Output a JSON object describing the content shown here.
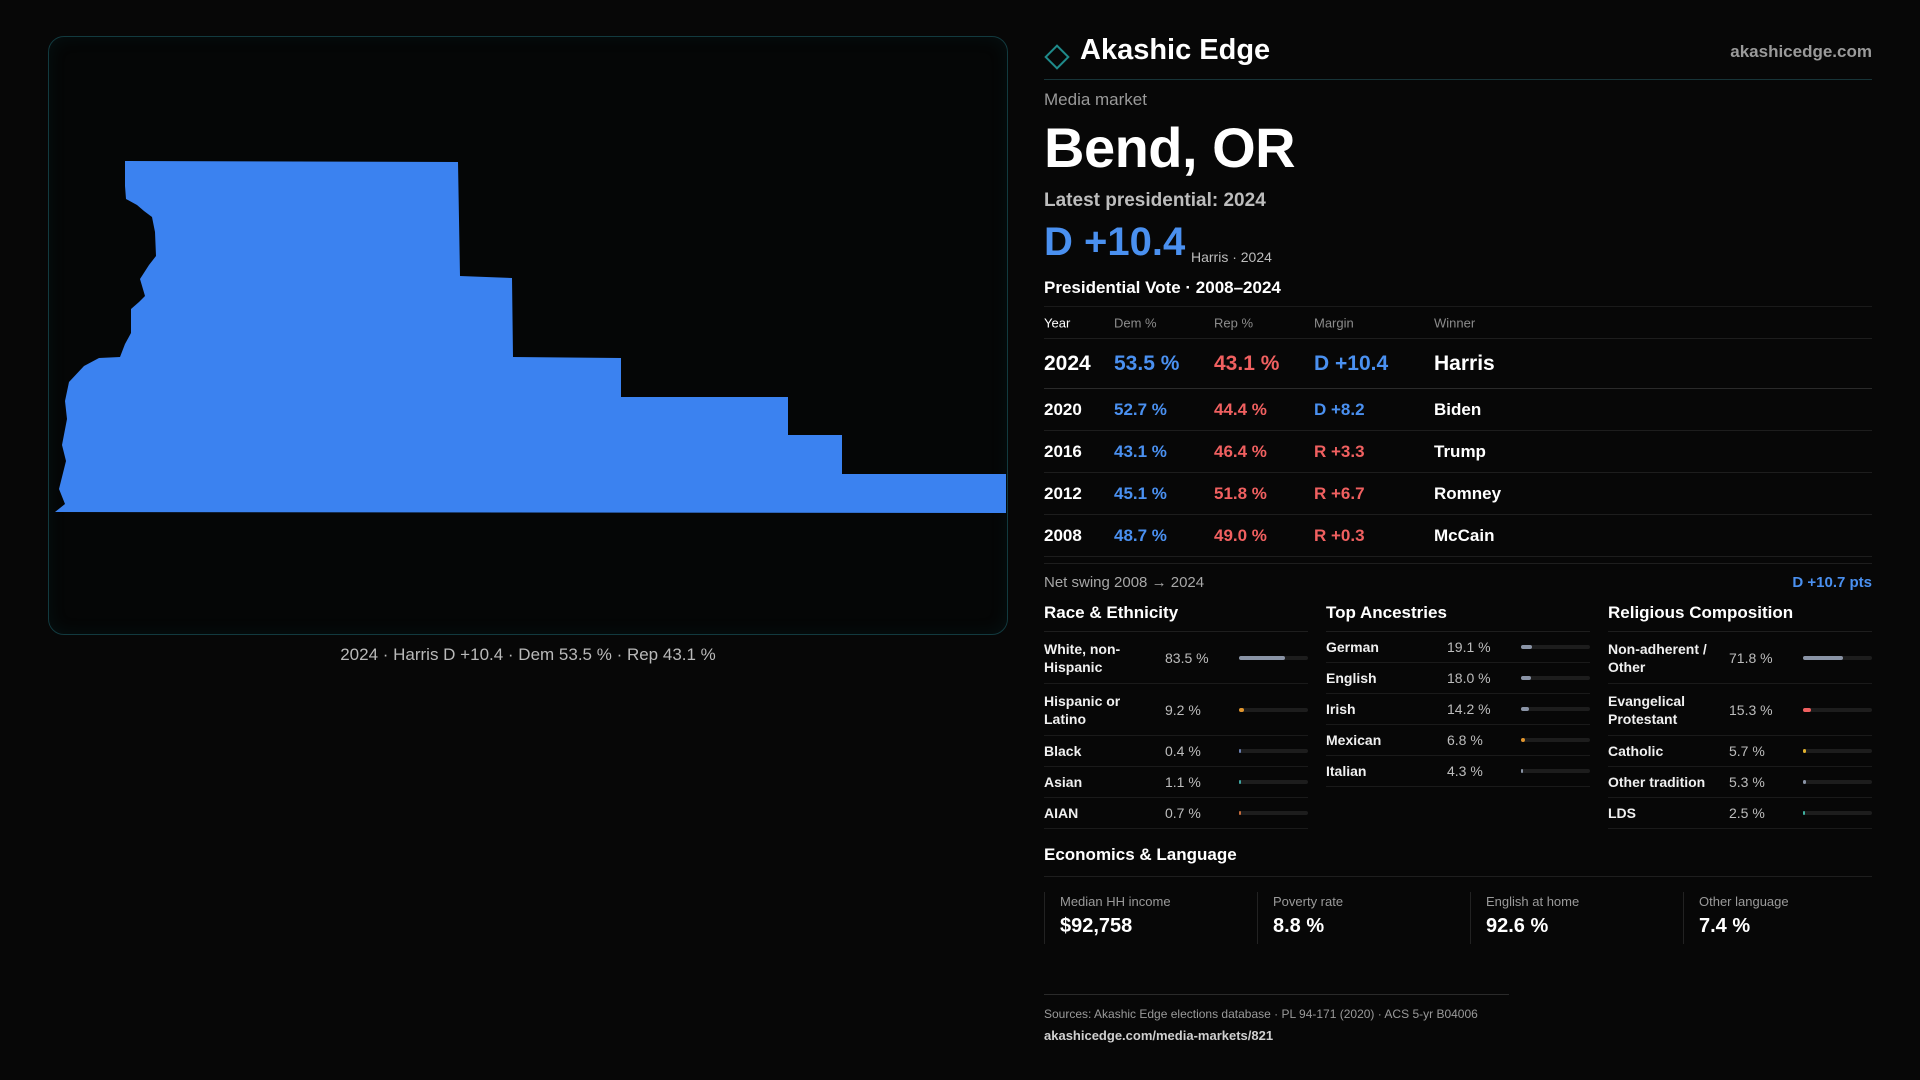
{
  "map": {
    "caption": "2024 · Harris D +10.4 · Dem 53.5 % · Rep 43.1 %",
    "fill_color": "#3b82f0"
  },
  "header": {
    "brand": "Akashic Edge",
    "url": "akashicedge.com",
    "kicker": "Media market",
    "market": "Bend, OR",
    "latest": "Latest presidential: 2024",
    "margin": "D +10.4",
    "margin_sub": "Harris · 2024",
    "vote_title": "Presidential Vote · 2008–2024"
  },
  "vote_table": {
    "headers": [
      "Year",
      "Dem %",
      "Rep %",
      "Margin",
      "Winner"
    ],
    "rows": [
      {
        "year": "2024",
        "dem": "53.5 %",
        "rep": "43.1 %",
        "margin": "D +10.4",
        "party": "dem",
        "winner": "Harris"
      },
      {
        "year": "2020",
        "dem": "52.7 %",
        "rep": "44.4 %",
        "margin": "D +8.2",
        "party": "dem",
        "winner": "Biden"
      },
      {
        "year": "2016",
        "dem": "43.1 %",
        "rep": "46.4 %",
        "margin": "R +3.3",
        "party": "rep",
        "winner": "Trump"
      },
      {
        "year": "2012",
        "dem": "45.1 %",
        "rep": "51.8 %",
        "margin": "R +6.7",
        "party": "rep",
        "winner": "Romney"
      },
      {
        "year": "2008",
        "dem": "48.7 %",
        "rep": "49.0 %",
        "margin": "R +0.3",
        "party": "rep",
        "winner": "McCain"
      }
    ]
  },
  "swing": {
    "label": "Net swing 2008 → 2024",
    "value": "D +10.7 pts"
  },
  "race": {
    "title": "Race & Ethnicity",
    "items": [
      {
        "label": "White, non-Hispanic",
        "value": "83.5 %",
        "pct": 83.5,
        "color": "#8a94a6"
      },
      {
        "label": "Hispanic or Latino",
        "value": "9.2 %",
        "pct": 9.2,
        "color": "#e0952e"
      },
      {
        "label": "Black",
        "value": "0.4 %",
        "pct": 0.4,
        "color": "#6a7fb0"
      },
      {
        "label": "Asian",
        "value": "1.1 %",
        "pct": 1.1,
        "color": "#3fa4a0"
      },
      {
        "label": "AIAN",
        "value": "0.7 %",
        "pct": 0.7,
        "color": "#c46a3a"
      }
    ]
  },
  "ancestry": {
    "title": "Top Ancestries",
    "items": [
      {
        "label": "German",
        "value": "19.1 %",
        "pct": 19.1,
        "color": "#8a94a6"
      },
      {
        "label": "English",
        "value": "18.0 %",
        "pct": 18.0,
        "color": "#8a94a6"
      },
      {
        "label": "Irish",
        "value": "14.2 %",
        "pct": 14.2,
        "color": "#8a94a6"
      },
      {
        "label": "Mexican",
        "value": "6.8 %",
        "pct": 6.8,
        "color": "#e0952e"
      },
      {
        "label": "Italian",
        "value": "4.3 %",
        "pct": 4.3,
        "color": "#8a94a6"
      }
    ]
  },
  "religion": {
    "title": "Religious Composition",
    "items": [
      {
        "label": "Non-adherent / Other",
        "value": "71.8 %",
        "pct": 71.8,
        "color": "#8a94a6"
      },
      {
        "label": "Evangelical Protestant",
        "value": "15.3 %",
        "pct": 15.3,
        "color": "#f06060"
      },
      {
        "label": "Catholic",
        "value": "5.7 %",
        "pct": 5.7,
        "color": "#e0b02e"
      },
      {
        "label": "Other tradition",
        "value": "5.3 %",
        "pct": 5.3,
        "color": "#8a94a6"
      },
      {
        "label": "LDS",
        "value": "2.5 %",
        "pct": 2.5,
        "color": "#3fb0a0"
      }
    ]
  },
  "economics": {
    "title": "Economics & Language",
    "cells": [
      {
        "label": "Median HH income",
        "value": "$92,758"
      },
      {
        "label": "Poverty rate",
        "value": "8.8 %"
      },
      {
        "label": "English at home",
        "value": "92.6 %"
      },
      {
        "label": "Other language",
        "value": "7.4 %"
      }
    ]
  },
  "footer": {
    "sources": "Sources: Akashic Edge elections database · PL 94-171 (2020) · ACS 5-yr B04006",
    "link": "akashicedge.com/media-markets/821"
  }
}
